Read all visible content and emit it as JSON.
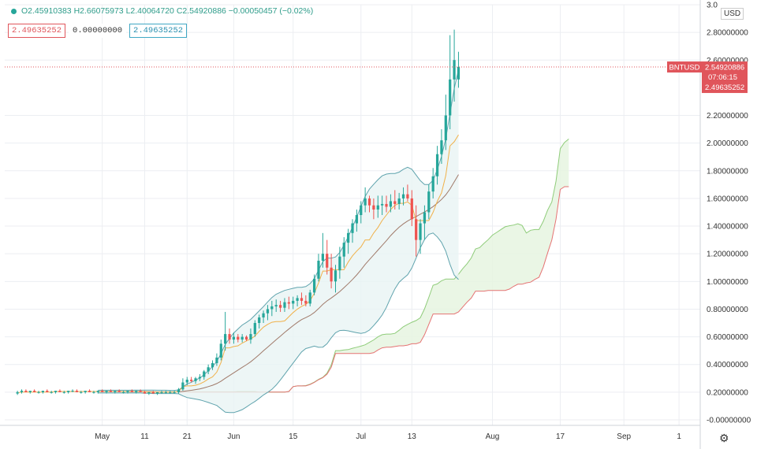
{
  "legend": {
    "open": "O2.45910383",
    "high": "H2.66075973",
    "low": "L2.40064720",
    "close": "C2.54920886",
    "change": "−0.00050457 (−0.02%)",
    "ind1": "2.49635252",
    "ind2": "0.00000000",
    "ind3": "2.49635252"
  },
  "currency": "USD",
  "price_tag": {
    "symbol": "BNTUSD",
    "price": "2.54920886",
    "countdown": "07:06:15",
    "indicator": "2.49635252"
  },
  "gear_icon": "gear-icon",
  "colors": {
    "up": "#26a69a",
    "down": "#ef5350",
    "bb": "#5fa3ad",
    "bb_fill": "#e8f4f4",
    "ma": "#a07a6a",
    "ichimoku_lead_a": "#8fcc7a",
    "ichimoku_lead_b": "#e57373",
    "cloud_fill": "#e6f4e0",
    "tenkan": "#f0b14a",
    "price_line": "#e0555b"
  },
  "chart_data": {
    "type": "candlestick",
    "title": "",
    "xlabel": "",
    "ylabel": "",
    "ylim": [
      -0.04,
      3.0
    ],
    "grid": true,
    "y_ticks": [
      3.0,
      2.8,
      2.6,
      2.2,
      2.0,
      1.8,
      1.6,
      1.4,
      1.2,
      1.0,
      0.8,
      0.6,
      0.4,
      0.2,
      0.0
    ],
    "y_tick_labels": [
      "3.0",
      "2.80000000",
      "2.60000000",
      "2.20000000",
      "2.00000000",
      "1.80000000",
      "1.60000000",
      "1.40000000",
      "1.20000000",
      "1.00000000",
      "0.80000000",
      "0.60000000",
      "0.40000000",
      "0.20000000",
      "-0.00000000"
    ],
    "x_ticks": [
      {
        "label": "May",
        "day": 23
      },
      {
        "label": "11",
        "day": 33
      },
      {
        "label": "21",
        "day": 43
      },
      {
        "label": "Jun",
        "day": 54
      },
      {
        "label": "15",
        "day": 68
      },
      {
        "label": "Jul",
        "day": 84
      },
      {
        "label": "13",
        "day": 96
      },
      {
        "label": "Aug",
        "day": 115
      },
      {
        "label": "17",
        "day": 131
      },
      {
        "label": "Sep",
        "day": 146
      },
      {
        "label": "1",
        "day": 159
      }
    ],
    "candles": [
      [
        0.19,
        0.21,
        0.18,
        0.2
      ],
      [
        0.2,
        0.22,
        0.19,
        0.21
      ],
      [
        0.21,
        0.22,
        0.2,
        0.2
      ],
      [
        0.2,
        0.21,
        0.19,
        0.21
      ],
      [
        0.21,
        0.22,
        0.2,
        0.2
      ],
      [
        0.2,
        0.21,
        0.19,
        0.2
      ],
      [
        0.2,
        0.21,
        0.19,
        0.21
      ],
      [
        0.21,
        0.22,
        0.2,
        0.2
      ],
      [
        0.2,
        0.21,
        0.19,
        0.2
      ],
      [
        0.2,
        0.21,
        0.19,
        0.21
      ],
      [
        0.21,
        0.22,
        0.2,
        0.2
      ],
      [
        0.2,
        0.21,
        0.19,
        0.2
      ],
      [
        0.2,
        0.21,
        0.19,
        0.21
      ],
      [
        0.21,
        0.22,
        0.2,
        0.21
      ],
      [
        0.21,
        0.22,
        0.2,
        0.2
      ],
      [
        0.2,
        0.21,
        0.19,
        0.2
      ],
      [
        0.2,
        0.21,
        0.19,
        0.21
      ],
      [
        0.21,
        0.22,
        0.2,
        0.2
      ],
      [
        0.2,
        0.21,
        0.19,
        0.2
      ],
      [
        0.2,
        0.21,
        0.19,
        0.21
      ],
      [
        0.21,
        0.22,
        0.2,
        0.2
      ],
      [
        0.2,
        0.21,
        0.19,
        0.21
      ],
      [
        0.21,
        0.22,
        0.2,
        0.2
      ],
      [
        0.2,
        0.21,
        0.19,
        0.21
      ],
      [
        0.21,
        0.22,
        0.2,
        0.2
      ],
      [
        0.2,
        0.21,
        0.19,
        0.2
      ],
      [
        0.2,
        0.21,
        0.19,
        0.21
      ],
      [
        0.21,
        0.22,
        0.2,
        0.2
      ],
      [
        0.2,
        0.21,
        0.19,
        0.21
      ],
      [
        0.21,
        0.22,
        0.2,
        0.2
      ],
      [
        0.2,
        0.21,
        0.19,
        0.19
      ],
      [
        0.19,
        0.2,
        0.18,
        0.2
      ],
      [
        0.2,
        0.21,
        0.19,
        0.19
      ],
      [
        0.19,
        0.2,
        0.18,
        0.2
      ],
      [
        0.2,
        0.21,
        0.19,
        0.2
      ],
      [
        0.2,
        0.21,
        0.19,
        0.2
      ],
      [
        0.2,
        0.21,
        0.19,
        0.2
      ],
      [
        0.2,
        0.21,
        0.19,
        0.2
      ],
      [
        0.2,
        0.23,
        0.19,
        0.22
      ],
      [
        0.22,
        0.3,
        0.21,
        0.27
      ],
      [
        0.27,
        0.31,
        0.25,
        0.29
      ],
      [
        0.29,
        0.31,
        0.27,
        0.28
      ],
      [
        0.28,
        0.31,
        0.26,
        0.3
      ],
      [
        0.3,
        0.33,
        0.28,
        0.31
      ],
      [
        0.31,
        0.36,
        0.29,
        0.35
      ],
      [
        0.35,
        0.4,
        0.33,
        0.38
      ],
      [
        0.38,
        0.43,
        0.36,
        0.41
      ],
      [
        0.41,
        0.48,
        0.39,
        0.45
      ],
      [
        0.45,
        0.58,
        0.43,
        0.55
      ],
      [
        0.55,
        0.78,
        0.5,
        0.62
      ],
      [
        0.62,
        0.66,
        0.55,
        0.58
      ],
      [
        0.58,
        0.63,
        0.55,
        0.6
      ],
      [
        0.6,
        0.62,
        0.56,
        0.58
      ],
      [
        0.58,
        0.62,
        0.56,
        0.6
      ],
      [
        0.6,
        0.61,
        0.57,
        0.58
      ],
      [
        0.58,
        0.66,
        0.55,
        0.62
      ],
      [
        0.62,
        0.72,
        0.6,
        0.7
      ],
      [
        0.7,
        0.76,
        0.66,
        0.74
      ],
      [
        0.74,
        0.79,
        0.7,
        0.77
      ],
      [
        0.77,
        0.83,
        0.72,
        0.8
      ],
      [
        0.8,
        0.86,
        0.75,
        0.82
      ],
      [
        0.82,
        0.87,
        0.78,
        0.83
      ],
      [
        0.83,
        0.86,
        0.78,
        0.81
      ],
      [
        0.81,
        0.88,
        0.78,
        0.85
      ],
      [
        0.85,
        0.89,
        0.8,
        0.84
      ],
      [
        0.84,
        0.89,
        0.8,
        0.86
      ],
      [
        0.86,
        0.9,
        0.82,
        0.88
      ],
      [
        0.88,
        0.92,
        0.83,
        0.86
      ],
      [
        0.86,
        0.9,
        0.82,
        0.84
      ],
      [
        0.84,
        0.94,
        0.82,
        0.92
      ],
      [
        0.92,
        1.05,
        0.9,
        1.02
      ],
      [
        1.02,
        1.2,
        1.0,
        1.15
      ],
      [
        1.15,
        1.35,
        1.1,
        1.2
      ],
      [
        1.2,
        1.3,
        1.05,
        1.1
      ],
      [
        1.1,
        1.2,
        0.95,
        1.0
      ],
      [
        1.0,
        1.12,
        0.92,
        1.08
      ],
      [
        1.08,
        1.25,
        1.02,
        1.18
      ],
      [
        1.18,
        1.32,
        1.1,
        1.28
      ],
      [
        1.28,
        1.38,
        1.2,
        1.35
      ],
      [
        1.35,
        1.45,
        1.28,
        1.42
      ],
      [
        1.42,
        1.52,
        1.36,
        1.48
      ],
      [
        1.48,
        1.58,
        1.42,
        1.55
      ],
      [
        1.55,
        1.68,
        1.5,
        1.6
      ],
      [
        1.6,
        1.62,
        1.5,
        1.55
      ],
      [
        1.55,
        1.6,
        1.45,
        1.52
      ],
      [
        1.52,
        1.62,
        1.46,
        1.55
      ],
      [
        1.55,
        1.62,
        1.48,
        1.56
      ],
      [
        1.56,
        1.62,
        1.5,
        1.54
      ],
      [
        1.54,
        1.63,
        1.5,
        1.58
      ],
      [
        1.58,
        1.66,
        1.52,
        1.56
      ],
      [
        1.56,
        1.64,
        1.52,
        1.6
      ],
      [
        1.6,
        1.68,
        1.55,
        1.63
      ],
      [
        1.63,
        1.7,
        1.58,
        1.6
      ],
      [
        1.6,
        1.66,
        1.4,
        1.45
      ],
      [
        1.45,
        1.55,
        1.18,
        1.3
      ],
      [
        1.3,
        1.45,
        1.2,
        1.42
      ],
      [
        1.42,
        1.55,
        1.3,
        1.5
      ],
      [
        1.5,
        1.7,
        1.45,
        1.65
      ],
      [
        1.65,
        1.82,
        1.6,
        1.76
      ],
      [
        1.76,
        1.98,
        1.7,
        1.92
      ],
      [
        1.92,
        2.1,
        1.85,
        2.02
      ],
      [
        2.02,
        2.35,
        1.95,
        2.2
      ],
      [
        2.2,
        2.78,
        2.1,
        2.46
      ],
      [
        2.46,
        2.82,
        2.3,
        2.6
      ],
      [
        2.46,
        2.66,
        2.4,
        2.55
      ]
    ]
  }
}
